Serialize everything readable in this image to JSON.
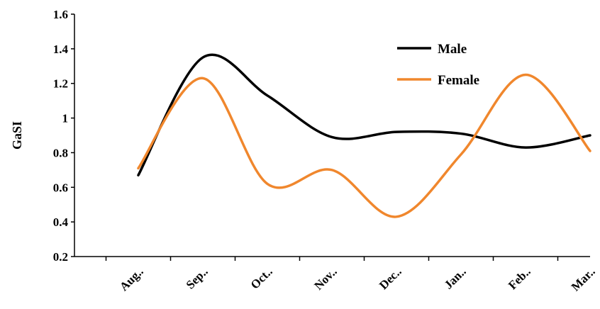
{
  "chart_data": {
    "type": "line",
    "title": "",
    "xlabel": "",
    "ylabel": "GaSI",
    "categories": [
      "Aug..",
      "Sep..",
      "Oct..",
      "Nov..",
      "Dec..",
      "Jan..",
      "Feb..",
      "Mar.."
    ],
    "ylim": [
      0.2,
      1.6
    ],
    "yticks": [
      "0.2",
      "0.4",
      "0.6",
      "0.8",
      "1",
      "1.2",
      "1.4",
      "1.6"
    ],
    "grid": false,
    "legend_position": "top-right",
    "smooth": true,
    "series": [
      {
        "name": "Male",
        "color": "#000000",
        "values": [
          0.67,
          1.35,
          1.13,
          0.89,
          0.92,
          0.91,
          0.83,
          0.9
        ]
      },
      {
        "name": "Female",
        "color": "#f0872d",
        "values": [
          0.71,
          1.23,
          0.62,
          0.7,
          0.43,
          0.79,
          1.25,
          0.81
        ]
      }
    ]
  }
}
